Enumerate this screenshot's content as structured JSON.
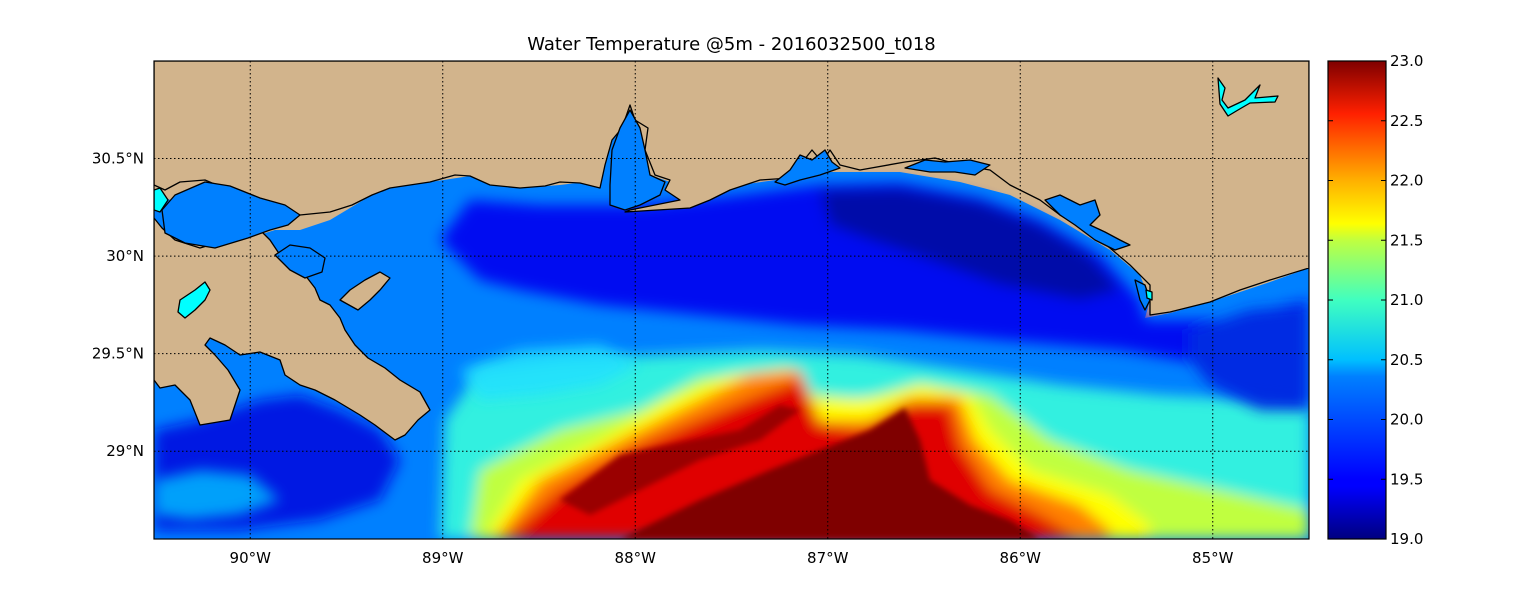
{
  "title": "Water Temperature @5m - 2016032500_t018",
  "map": {
    "lon_range": [
      -90.5,
      -84.5
    ],
    "lat_range": [
      28.55,
      31.0
    ],
    "lon_ticks": [
      {
        "value": -90,
        "label": "90°W"
      },
      {
        "value": -89,
        "label": "89°W"
      },
      {
        "value": -88,
        "label": "88°W"
      },
      {
        "value": -87,
        "label": "87°W"
      },
      {
        "value": -86,
        "label": "86°W"
      },
      {
        "value": -85,
        "label": "85°W"
      }
    ],
    "lat_ticks": [
      {
        "value": 30.5,
        "label": "30.5°N"
      },
      {
        "value": 30.0,
        "label": "30°N"
      },
      {
        "value": 29.5,
        "label": "29.5°N"
      },
      {
        "value": 29.0,
        "label": "29°N"
      }
    ],
    "gridlines": "dotted",
    "land_color": "#d2b48c",
    "inland_water_color": "#00ffff",
    "coastline_color": "#000000"
  },
  "colorbar": {
    "min": 19.0,
    "max": 23.0,
    "colormap": "jet",
    "ticks": [
      "19.0",
      "19.5",
      "20.0",
      "20.5",
      "21.0",
      "21.5",
      "22.0",
      "22.5",
      "23.0"
    ]
  }
}
